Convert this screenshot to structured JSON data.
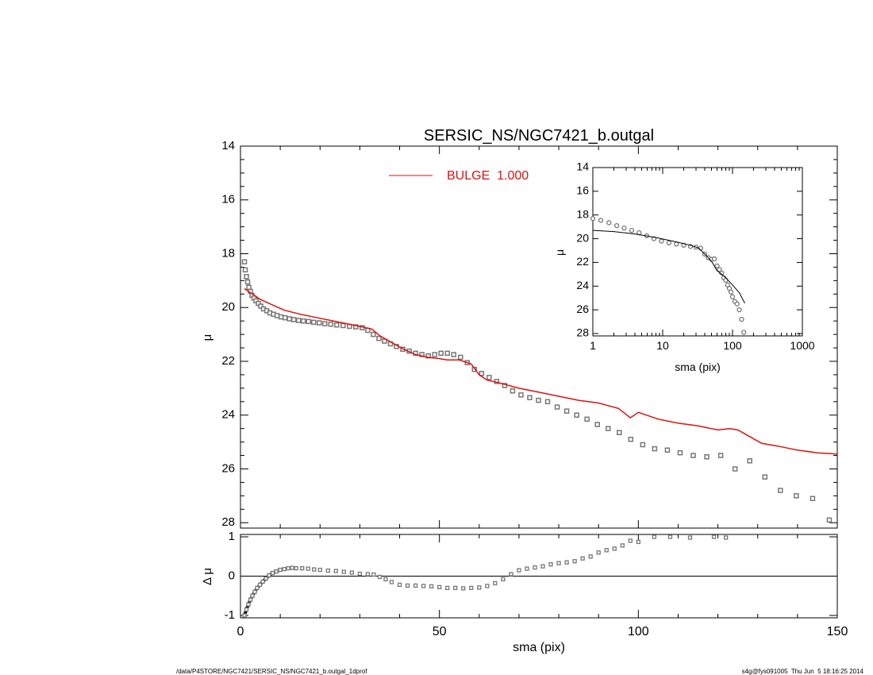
{
  "chart_data": [
    {
      "panel": "main",
      "type": "scatter",
      "title": "SERSIC_NS/NGC7421_b.outgal",
      "xlabel": "",
      "ylabel": "μ",
      "xlim": [
        0,
        150
      ],
      "ylim": [
        28.2,
        14
      ],
      "y_inverted": true,
      "yticks": [
        "14",
        "16",
        "18",
        "20",
        "22",
        "24",
        "26",
        "28"
      ],
      "legend": {
        "label": "BULGE  1.000",
        "color": "#dd1111",
        "placement": "top-center"
      },
      "series": [
        {
          "kind": "data",
          "marker": "square",
          "color": "#777777",
          "x": [
            1.0,
            1.2,
            1.5,
            1.8,
            2.1,
            2.5,
            2.9,
            3.4,
            3.9,
            4.5,
            5.1,
            5.8,
            6.6,
            7.4,
            8.3,
            9.2,
            10.2,
            11.2,
            12.3,
            13.4,
            14.6,
            15.8,
            17.1,
            18.4,
            19.8,
            21.2,
            22.7,
            24.2,
            25.8,
            27.4,
            29.0,
            30.6,
            32.0,
            33.4,
            34.8,
            36.2,
            37.7,
            39.2,
            40.8,
            42.4,
            44.0,
            45.6,
            47.2,
            48.8,
            50.4,
            52.0,
            53.6,
            55.3,
            57.0,
            58.8,
            60.6,
            62.5,
            64.4,
            66.4,
            68.4,
            70.5,
            72.7,
            74.9,
            77.2,
            79.6,
            82.0,
            84.5,
            87.1,
            89.7,
            92.4,
            95.2,
            98.1,
            101.1,
            104.1,
            107.3,
            110.5,
            113.8,
            117.2,
            120.7,
            124.3,
            128.0,
            131.8,
            135.7,
            139.7,
            143.8,
            148.0
          ],
          "values": [
            18.3,
            18.6,
            18.85,
            19.05,
            19.25,
            19.4,
            19.55,
            19.65,
            19.75,
            19.85,
            19.95,
            20.05,
            20.12,
            20.2,
            20.25,
            20.3,
            20.35,
            20.38,
            20.42,
            20.45,
            20.48,
            20.5,
            20.52,
            20.55,
            20.57,
            20.6,
            20.62,
            20.65,
            20.67,
            20.7,
            20.72,
            20.75,
            20.85,
            21.0,
            21.15,
            21.25,
            21.35,
            21.45,
            21.55,
            21.62,
            21.7,
            21.75,
            21.8,
            21.75,
            21.7,
            21.7,
            21.75,
            21.85,
            22.05,
            22.3,
            22.45,
            22.6,
            22.75,
            22.9,
            23.1,
            23.25,
            23.35,
            23.45,
            23.5,
            23.7,
            23.85,
            24.0,
            24.15,
            24.35,
            24.5,
            24.65,
            24.9,
            25.1,
            25.25,
            25.3,
            25.4,
            25.5,
            25.55,
            25.5,
            26.0,
            25.7,
            26.3,
            26.8,
            27.0,
            27.1,
            27.9
          ]
        },
        {
          "kind": "model",
          "name": "BULGE  1.000",
          "color": "#dd1111",
          "x": [
            1,
            3,
            5,
            8,
            11,
            15,
            20,
            25,
            30,
            33,
            35,
            38,
            41,
            44,
            47,
            50,
            52,
            55,
            58,
            60,
            62,
            65,
            70,
            75,
            80,
            85,
            90,
            95,
            98,
            100,
            102,
            105,
            110,
            115,
            120,
            123,
            125,
            128,
            131,
            135,
            140,
            145,
            150
          ],
          "values": [
            19.3,
            19.5,
            19.7,
            19.9,
            20.1,
            20.25,
            20.4,
            20.55,
            20.7,
            20.8,
            21.05,
            21.3,
            21.55,
            21.75,
            21.85,
            21.9,
            21.95,
            21.95,
            22.1,
            22.5,
            22.7,
            22.8,
            23.0,
            23.15,
            23.3,
            23.45,
            23.55,
            23.75,
            24.1,
            23.9,
            24.0,
            24.15,
            24.3,
            24.4,
            24.55,
            24.5,
            24.55,
            24.8,
            25.05,
            25.15,
            25.3,
            25.4,
            25.45
          ]
        }
      ]
    },
    {
      "panel": "inset",
      "type": "line",
      "xlabel": "sma (pix)",
      "ylabel": "μ",
      "xscale": "log",
      "xlim": [
        1,
        1000
      ],
      "ylim": [
        28.2,
        14
      ],
      "y_inverted": true,
      "xticks": [
        "1",
        "10",
        "100",
        "1000"
      ],
      "yticks": [
        "14",
        "16",
        "18",
        "20",
        "22",
        "24",
        "26",
        "28"
      ],
      "series": [
        {
          "kind": "data",
          "marker": "circle",
          "color": "#777777",
          "x": [
            1.0,
            1.3,
            1.7,
            2.2,
            2.8,
            3.6,
            4.6,
            5.9,
            7.5,
            9.6,
            12.3,
            15.7,
            20.0,
            25.0,
            30.0,
            35.0,
            40.0,
            45.0,
            50.0,
            55.0,
            60.0,
            65.0,
            70.0,
            75.0,
            80.0,
            85.0,
            90.0,
            95.0,
            100.0,
            108.0,
            116.0,
            125.0,
            135.0,
            145.0
          ],
          "values": [
            18.3,
            18.45,
            18.65,
            18.9,
            19.1,
            19.3,
            19.5,
            19.75,
            20.0,
            20.2,
            20.35,
            20.45,
            20.55,
            20.65,
            20.72,
            20.8,
            21.3,
            21.6,
            21.75,
            21.7,
            22.3,
            22.6,
            22.9,
            23.3,
            23.5,
            23.9,
            24.2,
            24.5,
            24.9,
            25.3,
            25.5,
            26.0,
            26.8,
            27.9
          ]
        },
        {
          "kind": "model",
          "color": "#000000",
          "x": [
            1.0,
            2.0,
            4.0,
            8.0,
            15.0,
            25.0,
            33.0,
            40.0,
            50.0,
            60.0,
            70.0,
            80.0,
            100.0,
            125.0,
            150.0
          ],
          "values": [
            19.3,
            19.4,
            19.6,
            19.9,
            20.25,
            20.55,
            20.8,
            21.3,
            21.9,
            22.7,
            23.0,
            23.3,
            23.9,
            24.55,
            25.45
          ]
        }
      ]
    },
    {
      "panel": "residual",
      "type": "scatter",
      "xlabel": "sma (pix)",
      "ylabel": "Δ μ",
      "xlim": [
        0,
        150
      ],
      "ylim": [
        -1,
        1
      ],
      "xticks": [
        "0",
        "50",
        "100",
        "150"
      ],
      "yticks": [
        "-1",
        "0",
        "1"
      ],
      "reference_line": 0,
      "series": [
        {
          "kind": "residual",
          "marker": "square",
          "color": "#777777",
          "x": [
            1.0,
            1.5,
            2.0,
            2.5,
            3.0,
            3.6,
            4.2,
            4.9,
            5.6,
            6.4,
            7.2,
            8.1,
            9.0,
            10.0,
            11.0,
            12.0,
            13.0,
            14.0,
            15.5,
            17.0,
            18.5,
            20.0,
            22.0,
            24.0,
            26.0,
            28.0,
            30.0,
            32.0,
            33.5,
            35.0,
            36.5,
            38.0,
            40.0,
            42.0,
            44.0,
            46.0,
            48.0,
            50.0,
            52.0,
            54.0,
            56.0,
            58.0,
            60.0,
            62.0,
            64.0,
            66.0,
            68.0,
            70.0,
            72.0,
            74.0,
            76.0,
            78.0,
            80.0,
            82.0,
            84.0,
            86.0,
            88.0,
            90.0,
            92.0,
            94.0,
            96.0,
            98.0,
            100.0,
            104.0,
            108.0,
            113.0,
            119.0,
            122.0
          ],
          "values": [
            -1.0,
            -0.85,
            -0.72,
            -0.6,
            -0.5,
            -0.4,
            -0.3,
            -0.22,
            -0.14,
            -0.06,
            0.02,
            0.08,
            0.12,
            0.16,
            0.18,
            0.2,
            0.21,
            0.2,
            0.2,
            0.19,
            0.17,
            0.16,
            0.14,
            0.13,
            0.11,
            0.09,
            0.06,
            0.05,
            0.04,
            -0.02,
            -0.08,
            -0.15,
            -0.22,
            -0.24,
            -0.24,
            -0.25,
            -0.26,
            -0.28,
            -0.3,
            -0.3,
            -0.31,
            -0.3,
            -0.29,
            -0.25,
            -0.18,
            -0.08,
            0.05,
            0.15,
            0.19,
            0.22,
            0.25,
            0.3,
            0.33,
            0.35,
            0.38,
            0.45,
            0.5,
            0.6,
            0.66,
            0.7,
            0.78,
            0.9,
            0.87,
            1.0,
            1.0,
            0.98,
            1.0,
            0.98
          ]
        }
      ]
    }
  ],
  "footer": {
    "left": "/data/P4STORE/NGC7421/SERSIC_NS/NGC7421_b.outgal_1dprof",
    "right": "s4g@fys091005  Thu Jun  5 18:16:25 2014"
  }
}
